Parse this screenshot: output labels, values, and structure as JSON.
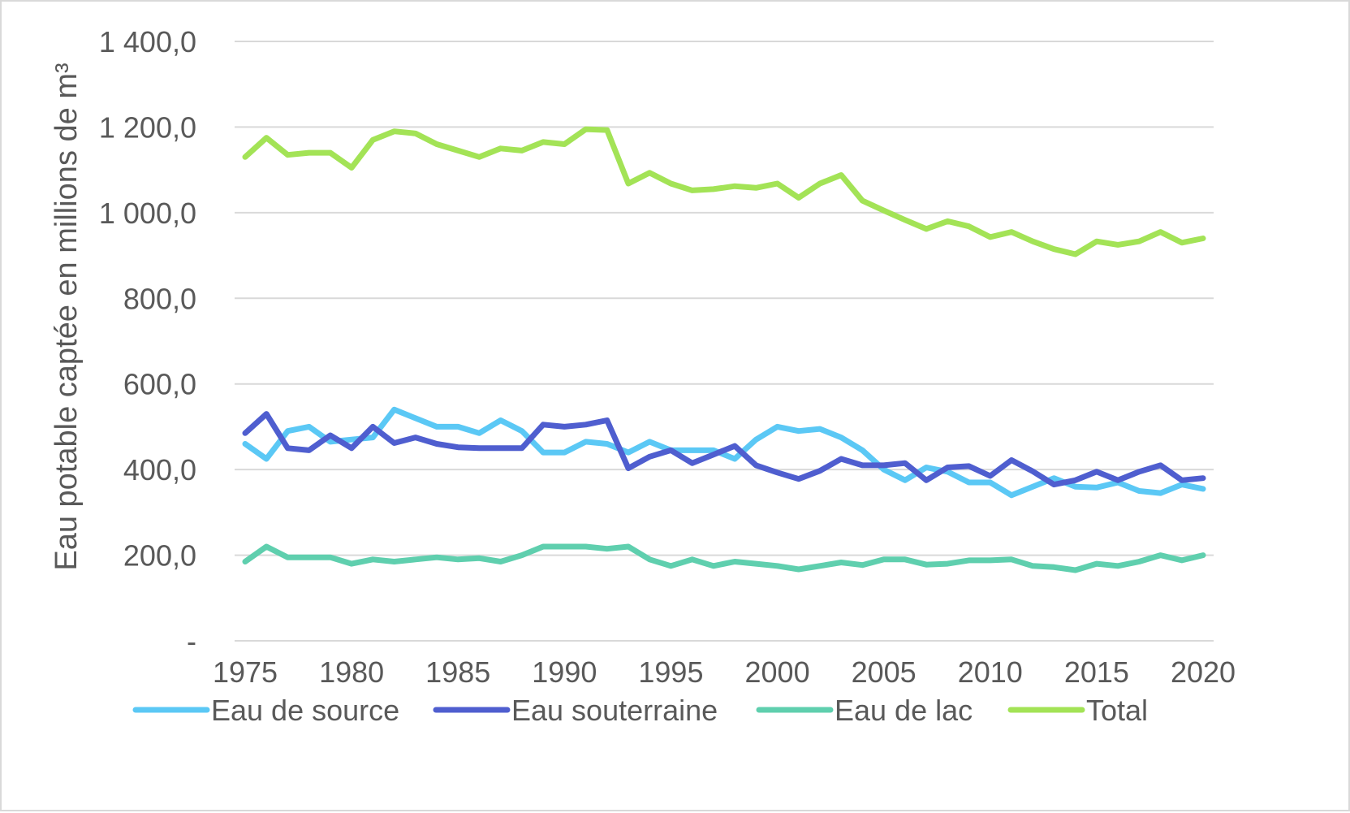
{
  "chart_data": {
    "type": "line",
    "ylabel": "Eau potable captée en millions de m³",
    "xlabel": "",
    "ylim": [
      0,
      1400
    ],
    "y_ticks": [
      {
        "value": 0,
        "label": "-"
      },
      {
        "value": 200,
        "label": "200,0"
      },
      {
        "value": 400,
        "label": "400,0"
      },
      {
        "value": 600,
        "label": "600,0"
      },
      {
        "value": 800,
        "label": "800,0"
      },
      {
        "value": 1000,
        "label": "1 000,0"
      },
      {
        "value": 1200,
        "label": "1 200,0"
      },
      {
        "value": 1400,
        "label": "1 400,0"
      }
    ],
    "x_ticks": [
      "1975",
      "1980",
      "1985",
      "1990",
      "1995",
      "2000",
      "2005",
      "2010",
      "2015",
      "2020"
    ],
    "grid": true,
    "legend_position": "bottom",
    "x": [
      1975,
      1976,
      1977,
      1978,
      1979,
      1980,
      1981,
      1982,
      1983,
      1984,
      1985,
      1986,
      1987,
      1988,
      1989,
      1990,
      1991,
      1992,
      1993,
      1994,
      1995,
      1996,
      1997,
      1998,
      1999,
      2000,
      2001,
      2002,
      2003,
      2004,
      2005,
      2006,
      2007,
      2008,
      2009,
      2010,
      2011,
      2012,
      2013,
      2014,
      2015,
      2016,
      2017,
      2018,
      2019,
      2020
    ],
    "series": [
      {
        "name": "Eau de source",
        "color": "#5bc8f5",
        "values": [
          460,
          425,
          490,
          500,
          465,
          470,
          475,
          540,
          520,
          500,
          500,
          485,
          515,
          490,
          440,
          440,
          465,
          460,
          440,
          465,
          445,
          445,
          445,
          425,
          470,
          500,
          490,
          495,
          475,
          445,
          400,
          375,
          405,
          395,
          370,
          370,
          340,
          360,
          380,
          360,
          358,
          370,
          350,
          345,
          365,
          355
        ]
      },
      {
        "name": "Eau souterraine",
        "color": "#4f5ecf",
        "values": [
          485,
          530,
          450,
          445,
          480,
          450,
          500,
          462,
          475,
          460,
          452,
          450,
          450,
          450,
          505,
          500,
          505,
          515,
          403,
          430,
          445,
          415,
          435,
          455,
          410,
          393,
          378,
          397,
          425,
          410,
          410,
          415,
          375,
          405,
          408,
          385,
          422,
          396,
          365,
          375,
          395,
          375,
          395,
          410,
          375,
          380
        ]
      },
      {
        "name": "Eau de lac",
        "color": "#5fcfae",
        "values": [
          185,
          220,
          195,
          195,
          195,
          180,
          190,
          185,
          190,
          195,
          190,
          193,
          185,
          200,
          220,
          220,
          220,
          215,
          220,
          190,
          175,
          190,
          175,
          185,
          180,
          175,
          167,
          175,
          183,
          177,
          190,
          190,
          178,
          180,
          188,
          188,
          190,
          175,
          172,
          165,
          180,
          175,
          185,
          200,
          188,
          200
        ]
      },
      {
        "name": "Total",
        "color": "#a3e356",
        "values": [
          1130,
          1175,
          1135,
          1140,
          1140,
          1105,
          1170,
          1190,
          1185,
          1160,
          1145,
          1130,
          1150,
          1145,
          1165,
          1160,
          1195,
          1193,
          1068,
          1093,
          1068,
          1052,
          1055,
          1062,
          1058,
          1068,
          1035,
          1068,
          1088,
          1028,
          1005,
          983,
          962,
          980,
          968,
          943,
          955,
          933,
          915,
          903,
          933,
          925,
          933,
          955,
          930,
          940
        ]
      }
    ]
  }
}
